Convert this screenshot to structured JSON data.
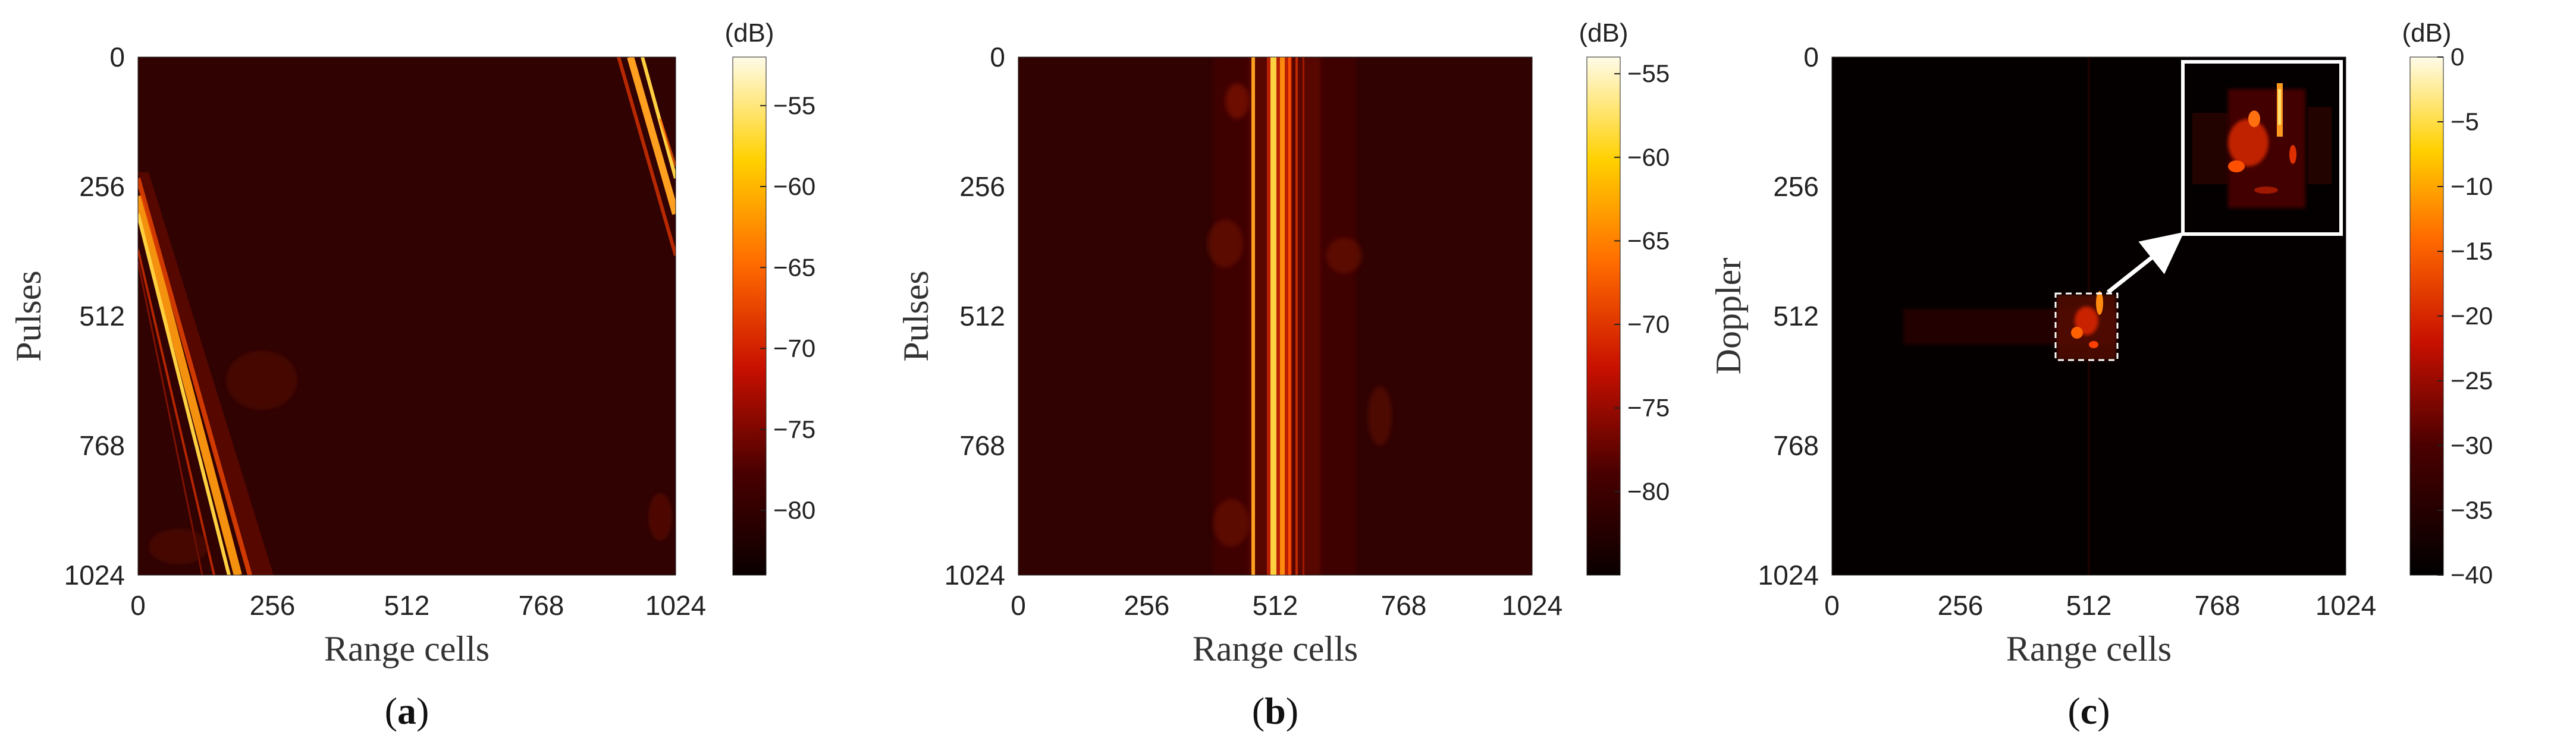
{
  "chart_data": [
    {
      "type": "heatmap",
      "panel_label": "a",
      "xlabel": "Range cells",
      "ylabel": "Pulses",
      "xlim": [
        0,
        1024
      ],
      "ylim": [
        0,
        1024
      ],
      "y_reversed": true,
      "x_ticks": [
        "0",
        "256",
        "512",
        "768",
        "1024"
      ],
      "y_ticks": [
        "0",
        "256",
        "512",
        "768",
        "1024"
      ],
      "colorbar": {
        "title": "(dB)",
        "range": [
          -84,
          -52
        ],
        "ticks": [
          "-55",
          "-60",
          "-65",
          "-70",
          "-75",
          "-80"
        ],
        "tick_values": [
          -55,
          -60,
          -65,
          -70,
          -75,
          -80
        ],
        "colormap": "hot"
      },
      "features": [
        {
          "kind": "diagonal-streak",
          "from": [
            0,
            200
          ],
          "to": [
            200,
            1024
          ],
          "intensity": "high"
        },
        {
          "kind": "diagonal-streak",
          "from": [
            930,
            0
          ],
          "to": [
            1024,
            330
          ],
          "intensity": "high"
        }
      ]
    },
    {
      "type": "heatmap",
      "panel_label": "b",
      "xlabel": "Range cells",
      "ylabel": "Pulses",
      "xlim": [
        0,
        1024
      ],
      "ylim": [
        0,
        1024
      ],
      "y_reversed": true,
      "x_ticks": [
        "0",
        "256",
        "512",
        "768",
        "1024"
      ],
      "y_ticks": [
        "0",
        "256",
        "512",
        "768",
        "1024"
      ],
      "colorbar": {
        "title": "(dB)",
        "range": [
          -85,
          -54
        ],
        "ticks": [
          "-55",
          "-60",
          "-65",
          "-70",
          "-75",
          "-80"
        ],
        "tick_values": [
          -55,
          -60,
          -65,
          -70,
          -75,
          -80
        ],
        "colormap": "hot"
      },
      "features": [
        {
          "kind": "vertical-band",
          "x_center": 512,
          "width": 60,
          "intensity": "high"
        },
        {
          "kind": "vertical-line",
          "x": 465,
          "intensity": "medium"
        }
      ]
    },
    {
      "type": "heatmap",
      "panel_label": "c",
      "xlabel": "Range cells",
      "ylabel": "Doppler",
      "xlim": [
        0,
        1024
      ],
      "ylim": [
        0,
        1024
      ],
      "y_reversed": true,
      "x_ticks": [
        "0",
        "256",
        "512",
        "768",
        "1024"
      ],
      "y_ticks": [
        "0",
        "256",
        "512",
        "768",
        "1024"
      ],
      "colorbar": {
        "title": "(dB)",
        "range": [
          -40,
          0
        ],
        "ticks": [
          "0",
          "-5",
          "-10",
          "-15",
          "-20",
          "-25",
          "-30",
          "-35",
          "-40"
        ],
        "tick_values": [
          0,
          -5,
          -10,
          -15,
          -20,
          -25,
          -30,
          -35,
          -40
        ],
        "colormap": "hot"
      },
      "features": [
        {
          "kind": "target-blob",
          "x_range": [
            430,
            560
          ],
          "y_range": [
            450,
            590
          ],
          "intensity": "high"
        }
      ],
      "inset": {
        "description_hidden": true,
        "source_box": {
          "x_range": [
            430,
            560
          ],
          "y_range": [
            450,
            590
          ]
        }
      }
    }
  ],
  "captions": {
    "a": "a",
    "b": "b",
    "c": "c"
  }
}
